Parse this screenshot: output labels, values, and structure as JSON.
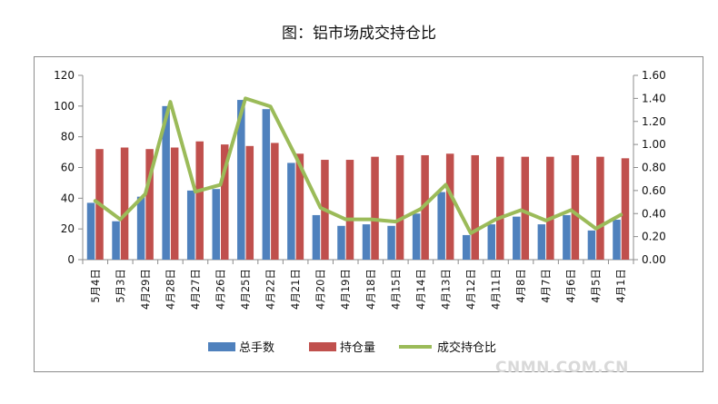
{
  "chart_data": {
    "type": "bar",
    "title": "图：铝市场成交持仓比",
    "categories": [
      "5月4日",
      "5月3日",
      "4月29日",
      "4月28日",
      "4月27日",
      "4月26日",
      "4月25日",
      "4月22日",
      "4月21日",
      "4月20日",
      "4月19日",
      "4月18日",
      "4月15日",
      "4月14日",
      "4月13日",
      "4月12日",
      "4月11日",
      "4月8日",
      "4月7日",
      "4月6日",
      "4月5日",
      "4月1日"
    ],
    "series": [
      {
        "name": "总手数",
        "axis": "left",
        "type": "bar",
        "color": "#4f81bd",
        "values": [
          37,
          25,
          41,
          100,
          45,
          46,
          104,
          98,
          63,
          29,
          22,
          23,
          22,
          30,
          44,
          16,
          23,
          28,
          23,
          29,
          19,
          26
        ]
      },
      {
        "name": "持仓量",
        "axis": "left",
        "type": "bar",
        "color": "#c0504d",
        "values": [
          72,
          73,
          72,
          73,
          77,
          75,
          74,
          76,
          69,
          65,
          65,
          67,
          68,
          68,
          69,
          68,
          67,
          67,
          67,
          68,
          67,
          66
        ]
      },
      {
        "name": "成交持仓比",
        "axis": "right",
        "type": "line",
        "color": "#9bbb59",
        "values": [
          0.51,
          0.35,
          0.57,
          1.37,
          0.59,
          0.65,
          1.4,
          1.33,
          0.9,
          0.45,
          0.35,
          0.35,
          0.33,
          0.44,
          0.65,
          0.23,
          0.35,
          0.43,
          0.34,
          0.43,
          0.27,
          0.39
        ]
      }
    ],
    "ylim_left": [
      0,
      120
    ],
    "yticks_left": [
      "0",
      "20",
      "40",
      "60",
      "80",
      "100",
      "120"
    ],
    "ylim_right": [
      0,
      1.6
    ],
    "yticks_right": [
      "0.00",
      "0.20",
      "0.40",
      "0.60",
      "0.80",
      "1.00",
      "1.20",
      "1.40",
      "1.60"
    ],
    "grid": false,
    "legend_position": "bottom"
  },
  "watermark": "CNMN.COM.CN"
}
